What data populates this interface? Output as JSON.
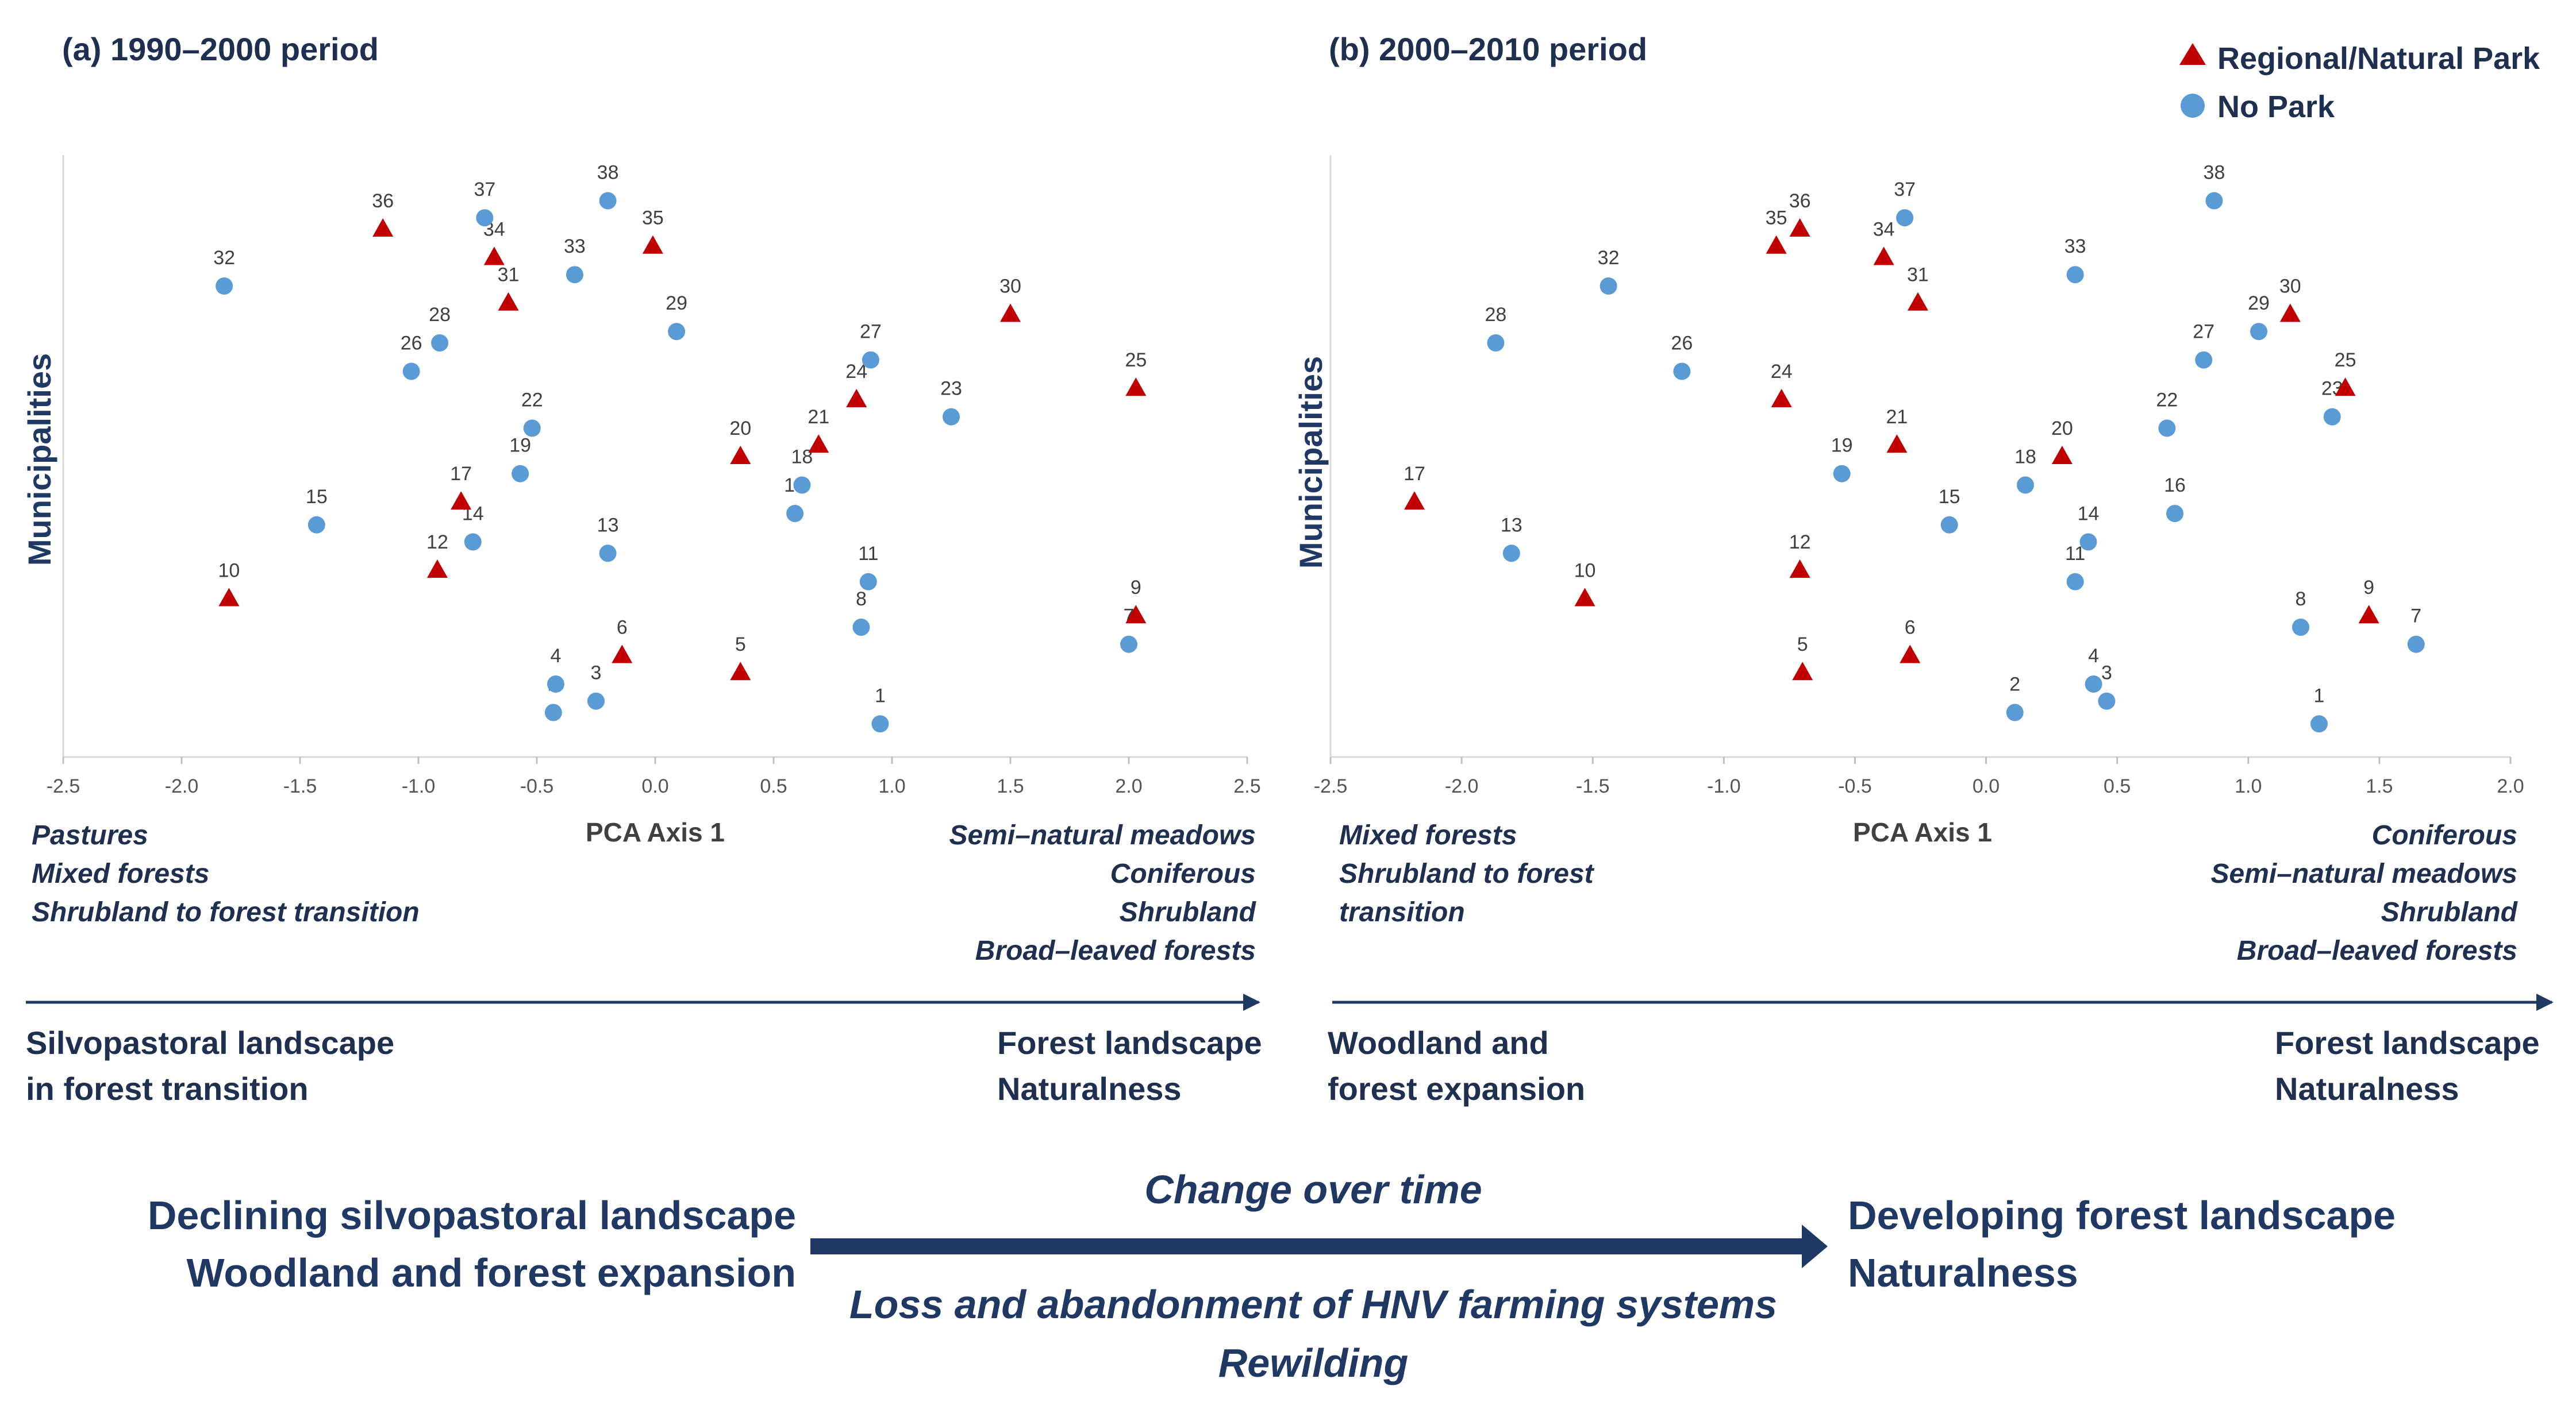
{
  "legend": {
    "park_label": "Regional/Natural Park",
    "nopark_label": "No Park",
    "park_color": "#c00000",
    "nopark_color": "#5b9bd5"
  },
  "chart_data": [
    {
      "type": "scatter",
      "title": "(a) 1990–2000 period",
      "xlabel": "PCA Axis 1",
      "ylabel": "Municipalities",
      "xlim": [
        -2.5,
        2.5
      ],
      "xticks": [
        "-2.5",
        "-2.0",
        "-1.5",
        "-1.0",
        "-0.5",
        "0.0",
        "0.5",
        "1.0",
        "1.5",
        "2.0",
        "2.5"
      ],
      "ylim": [
        0,
        1
      ],
      "y_axis_has_scale": false,
      "left_note": [
        "Pastures",
        "Mixed forests",
        "Shrubland  to forest transition"
      ],
      "right_note": [
        "Semi–natural meadows",
        "Coniferous",
        "Shrubland",
        "Broad–leaved forests"
      ],
      "left_landscape": [
        "Silvopastoral landscape",
        "in forest transition"
      ],
      "right_landscape": [
        "Forest landscape",
        "Naturalness"
      ],
      "points": [
        {
          "id": "1",
          "x": 0.95,
          "y": 0.03,
          "park": false
        },
        {
          "id": "2",
          "x": -0.43,
          "y": 0.05,
          "park": false
        },
        {
          "id": "3",
          "x": -0.25,
          "y": 0.07,
          "park": false
        },
        {
          "id": "4",
          "x": -0.42,
          "y": 0.1,
          "park": false
        },
        {
          "id": "5",
          "x": 0.36,
          "y": 0.12,
          "park": true
        },
        {
          "id": "6",
          "x": -0.14,
          "y": 0.15,
          "park": true
        },
        {
          "id": "7",
          "x": 2.0,
          "y": 0.17,
          "park": false
        },
        {
          "id": "8",
          "x": 0.87,
          "y": 0.2,
          "park": false
        },
        {
          "id": "9",
          "x": 2.03,
          "y": 0.22,
          "park": true
        },
        {
          "id": "10",
          "x": -1.8,
          "y": 0.25,
          "park": true
        },
        {
          "id": "11",
          "x": 0.9,
          "y": 0.28,
          "park": false
        },
        {
          "id": "12",
          "x": -0.92,
          "y": 0.3,
          "park": true
        },
        {
          "id": "13",
          "x": -0.2,
          "y": 0.33,
          "park": false
        },
        {
          "id": "14",
          "x": -0.77,
          "y": 0.35,
          "park": false
        },
        {
          "id": "15",
          "x": -1.43,
          "y": 0.38,
          "park": false
        },
        {
          "id": "16",
          "x": 0.59,
          "y": 0.4,
          "park": false
        },
        {
          "id": "17",
          "x": -0.82,
          "y": 0.42,
          "park": true
        },
        {
          "id": "18",
          "x": 0.62,
          "y": 0.45,
          "park": false
        },
        {
          "id": "19",
          "x": -0.57,
          "y": 0.47,
          "park": false
        },
        {
          "id": "20",
          "x": 0.36,
          "y": 0.5,
          "park": true
        },
        {
          "id": "21",
          "x": 0.69,
          "y": 0.52,
          "park": true
        },
        {
          "id": "22",
          "x": -0.52,
          "y": 0.55,
          "park": false
        },
        {
          "id": "23",
          "x": 1.25,
          "y": 0.57,
          "park": false
        },
        {
          "id": "24",
          "x": 0.85,
          "y": 0.6,
          "park": true
        },
        {
          "id": "25",
          "x": 2.03,
          "y": 0.62,
          "park": true
        },
        {
          "id": "26",
          "x": -1.03,
          "y": 0.65,
          "park": false
        },
        {
          "id": "27",
          "x": 0.91,
          "y": 0.67,
          "park": false
        },
        {
          "id": "28",
          "x": -0.91,
          "y": 0.7,
          "park": false
        },
        {
          "id": "29",
          "x": 0.09,
          "y": 0.72,
          "park": false
        },
        {
          "id": "30",
          "x": 1.5,
          "y": 0.75,
          "park": true
        },
        {
          "id": "31",
          "x": -0.62,
          "y": 0.77,
          "park": true
        },
        {
          "id": "32",
          "x": -1.82,
          "y": 0.8,
          "park": false
        },
        {
          "id": "33",
          "x": -0.34,
          "y": 0.82,
          "park": false
        },
        {
          "id": "34",
          "x": -0.68,
          "y": 0.85,
          "park": true
        },
        {
          "id": "35",
          "x": -0.01,
          "y": 0.87,
          "park": true
        },
        {
          "id": "36",
          "x": -1.15,
          "y": 0.9,
          "park": true
        },
        {
          "id": "37",
          "x": -0.72,
          "y": 0.92,
          "park": false
        },
        {
          "id": "38",
          "x": -0.2,
          "y": 0.95,
          "park": false
        }
      ]
    },
    {
      "type": "scatter",
      "title": "(b) 2000–2010 period",
      "xlabel": "PCA Axis 1",
      "ylabel": "Municipalities",
      "xlim": [
        -2.5,
        2.0
      ],
      "xticks": [
        "-2.5",
        "-2.0",
        "-1.5",
        "-1.0",
        "-0.5",
        "0.0",
        "0.5",
        "1.0",
        "1.5",
        "2.0"
      ],
      "ylim": [
        0,
        1
      ],
      "y_axis_has_scale": false,
      "left_note": [
        "Mixed forests",
        "Shrubland  to forest",
        "transition"
      ],
      "right_note": [
        "Coniferous",
        "Semi–natural meadows",
        "Shrubland",
        "Broad–leaved forests"
      ],
      "left_landscape": [
        "Woodland and",
        "forest expansion"
      ],
      "right_landscape": [
        "Forest landscape",
        "Naturalness"
      ],
      "points": [
        {
          "id": "1",
          "x": 1.27,
          "y": 0.03,
          "park": false
        },
        {
          "id": "2",
          "x": 0.11,
          "y": 0.05,
          "park": false
        },
        {
          "id": "3",
          "x": 0.46,
          "y": 0.07,
          "park": false
        },
        {
          "id": "4",
          "x": 0.41,
          "y": 0.1,
          "park": false
        },
        {
          "id": "5",
          "x": -0.7,
          "y": 0.12,
          "park": true
        },
        {
          "id": "6",
          "x": -0.29,
          "y": 0.15,
          "park": true
        },
        {
          "id": "7",
          "x": 1.64,
          "y": 0.17,
          "park": false
        },
        {
          "id": "8",
          "x": 1.2,
          "y": 0.2,
          "park": false
        },
        {
          "id": "9",
          "x": 1.46,
          "y": 0.22,
          "park": true
        },
        {
          "id": "10",
          "x": -1.53,
          "y": 0.25,
          "park": true
        },
        {
          "id": "11",
          "x": 0.34,
          "y": 0.28,
          "park": false
        },
        {
          "id": "12",
          "x": -0.71,
          "y": 0.3,
          "park": true
        },
        {
          "id": "13",
          "x": -1.81,
          "y": 0.33,
          "park": false
        },
        {
          "id": "14",
          "x": 0.39,
          "y": 0.35,
          "park": false
        },
        {
          "id": "15",
          "x": -0.14,
          "y": 0.38,
          "park": false
        },
        {
          "id": "16",
          "x": 0.72,
          "y": 0.4,
          "park": false
        },
        {
          "id": "17",
          "x": -2.18,
          "y": 0.42,
          "park": true
        },
        {
          "id": "18",
          "x": 0.15,
          "y": 0.45,
          "park": false
        },
        {
          "id": "19",
          "x": -0.55,
          "y": 0.47,
          "park": false
        },
        {
          "id": "20",
          "x": 0.29,
          "y": 0.5,
          "park": true
        },
        {
          "id": "21",
          "x": -0.34,
          "y": 0.52,
          "park": true
        },
        {
          "id": "22",
          "x": 0.69,
          "y": 0.55,
          "park": false
        },
        {
          "id": "23",
          "x": 1.32,
          "y": 0.57,
          "park": false
        },
        {
          "id": "24",
          "x": -0.78,
          "y": 0.6,
          "park": true
        },
        {
          "id": "25",
          "x": 1.37,
          "y": 0.62,
          "park": true
        },
        {
          "id": "26",
          "x": -1.16,
          "y": 0.65,
          "park": false
        },
        {
          "id": "27",
          "x": 0.83,
          "y": 0.67,
          "park": false
        },
        {
          "id": "28",
          "x": -1.87,
          "y": 0.7,
          "park": false
        },
        {
          "id": "29",
          "x": 1.04,
          "y": 0.72,
          "park": false
        },
        {
          "id": "30",
          "x": 1.16,
          "y": 0.75,
          "park": true
        },
        {
          "id": "31",
          "x": -0.26,
          "y": 0.77,
          "park": true
        },
        {
          "id": "32",
          "x": -1.44,
          "y": 0.8,
          "park": false
        },
        {
          "id": "33",
          "x": 0.34,
          "y": 0.82,
          "park": false
        },
        {
          "id": "34",
          "x": -0.39,
          "y": 0.85,
          "park": true
        },
        {
          "id": "35",
          "x": -0.8,
          "y": 0.87,
          "park": true
        },
        {
          "id": "36",
          "x": -0.71,
          "y": 0.9,
          "park": true
        },
        {
          "id": "37",
          "x": -0.31,
          "y": 0.92,
          "park": false
        },
        {
          "id": "38",
          "x": 0.87,
          "y": 0.95,
          "park": false
        }
      ]
    }
  ],
  "bottom": {
    "left": [
      "Declining silvopastoral landscape",
      "Woodland and forest expansion"
    ],
    "center_top": "Change over time",
    "center_bottom": [
      "Loss and abandonment of HNV farming systems",
      "Rewilding"
    ],
    "right": [
      "Developing forest landscape",
      "Naturalness"
    ]
  }
}
